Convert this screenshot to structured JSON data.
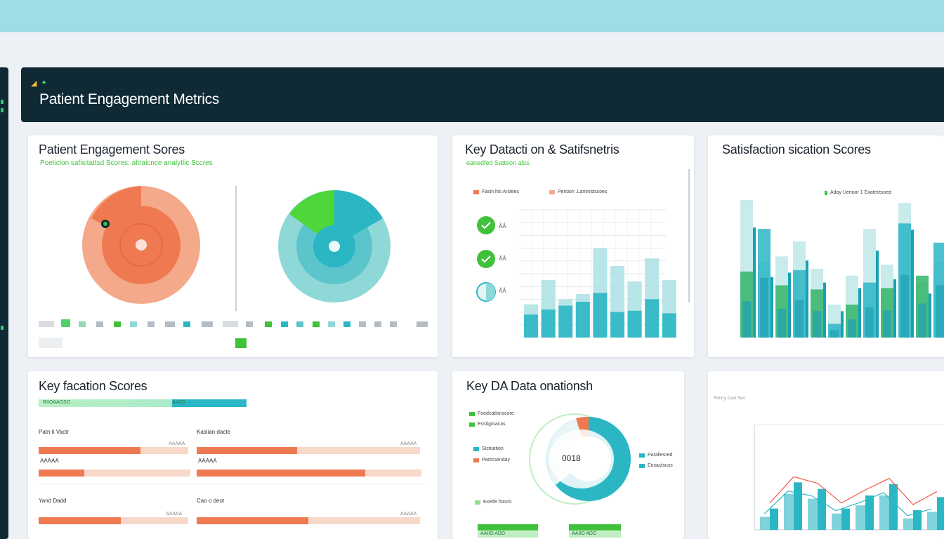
{
  "header": {
    "crumb1": "",
    "crumb2": "",
    "title": "Patient Engagement Metrics"
  },
  "card1": {
    "title": "Patient Engagement Sores",
    "subtitle": "Poeticlon safisitattsd Scores: altraicnce analytlic Sccres",
    "legend_row1": [
      "",
      "",
      "",
      "",
      "",
      "",
      "",
      "",
      "",
      "",
      "",
      "",
      "",
      "",
      "",
      "",
      "",
      "",
      "",
      "",
      "",
      ""
    ],
    "legend_row2": [
      "",
      "",
      "",
      "",
      ""
    ],
    "gauge1_percent": 50,
    "gauge2_percent": 22
  },
  "card2": {
    "title": "Key Datacti on & Satifsnetris",
    "subtitle": "eanedfed Satteon alss",
    "legend": [
      "Fasin his Arslees",
      "Persion .Lamnistscoes"
    ],
    "indicators": [
      "ÅÅ",
      "ÅÅ",
      "ÅÅ"
    ],
    "colors": {
      "accent": "#2bb6c4",
      "green": "#3fc13a",
      "coral": "#ef7a52"
    },
    "chart_data": {
      "type": "bar",
      "series": [
        {
          "values": [
            26,
            45,
            30,
            34,
            70,
            56,
            44,
            62,
            45
          ]
        },
        {
          "values": [
            18,
            22,
            25,
            28,
            35,
            20,
            21,
            30,
            19
          ]
        }
      ],
      "ylim": [
        0,
        100
      ],
      "grid": true
    }
  },
  "card3": {
    "title": "Satisfaction sication Scores",
    "legend": "Aday Uenoor 1 Exatectsoed",
    "chart_data": {
      "type": "bar",
      "series": [
        {
          "values": [
            100,
            55,
            59,
            70,
            50,
            24,
            45,
            79,
            53,
            98,
            40,
            55
          ]
        },
        {
          "values": [
            48,
            79,
            38,
            49,
            35,
            10,
            24,
            40,
            36,
            83,
            45,
            69
          ]
        }
      ],
      "ylim": [
        0,
        100
      ]
    }
  },
  "card4": {
    "title": "Key facation Scores",
    "progress_label": "RIIOAAGSO",
    "progress_value": "AAIIO",
    "rows": [
      {
        "label": "Patn ti Vactr",
        "value": "AAAAA",
        "pct": 68
      },
      {
        "label": "Kaslian dacte",
        "value": "AAAAA",
        "pct": 45
      },
      {
        "label": "",
        "value": "",
        "pct": 30
      },
      {
        "label": "",
        "value": "",
        "pct": 75
      },
      {
        "label": "Yand Dadd",
        "value": "AAAAA",
        "pct": 55
      },
      {
        "label": "Cao o deot",
        "value": "AAAAA",
        "pct": 50
      }
    ]
  },
  "card5": {
    "title": "Key DA Data onationsh",
    "center_value": "0018",
    "left_labels": [
      "Foedcatlonscore",
      "Esstigmacas",
      "Sistoation",
      "Pactcsenday",
      "Exetfe fstoris"
    ],
    "right_labels": [
      "Parallesred",
      "Eosaulsuss"
    ],
    "bottom_labels": [
      "AAIIO ADD",
      "AAIIO ADD"
    ],
    "donut_percent": 66
  },
  "card6": {
    "caption": "Rnnrry Daut Seo",
    "chart_data": {
      "type": "bar",
      "x": [
        "",
        "",
        "",
        "",
        "",
        "",
        "",
        ""
      ],
      "series": [
        {
          "values": [
            26,
            58,
            50,
            26,
            42,
            56,
            24,
            40
          ]
        },
        {
          "values": [
            16,
            44,
            38,
            20,
            30,
            42,
            14,
            22
          ]
        }
      ],
      "ylim": [
        0,
        120
      ]
    }
  }
}
